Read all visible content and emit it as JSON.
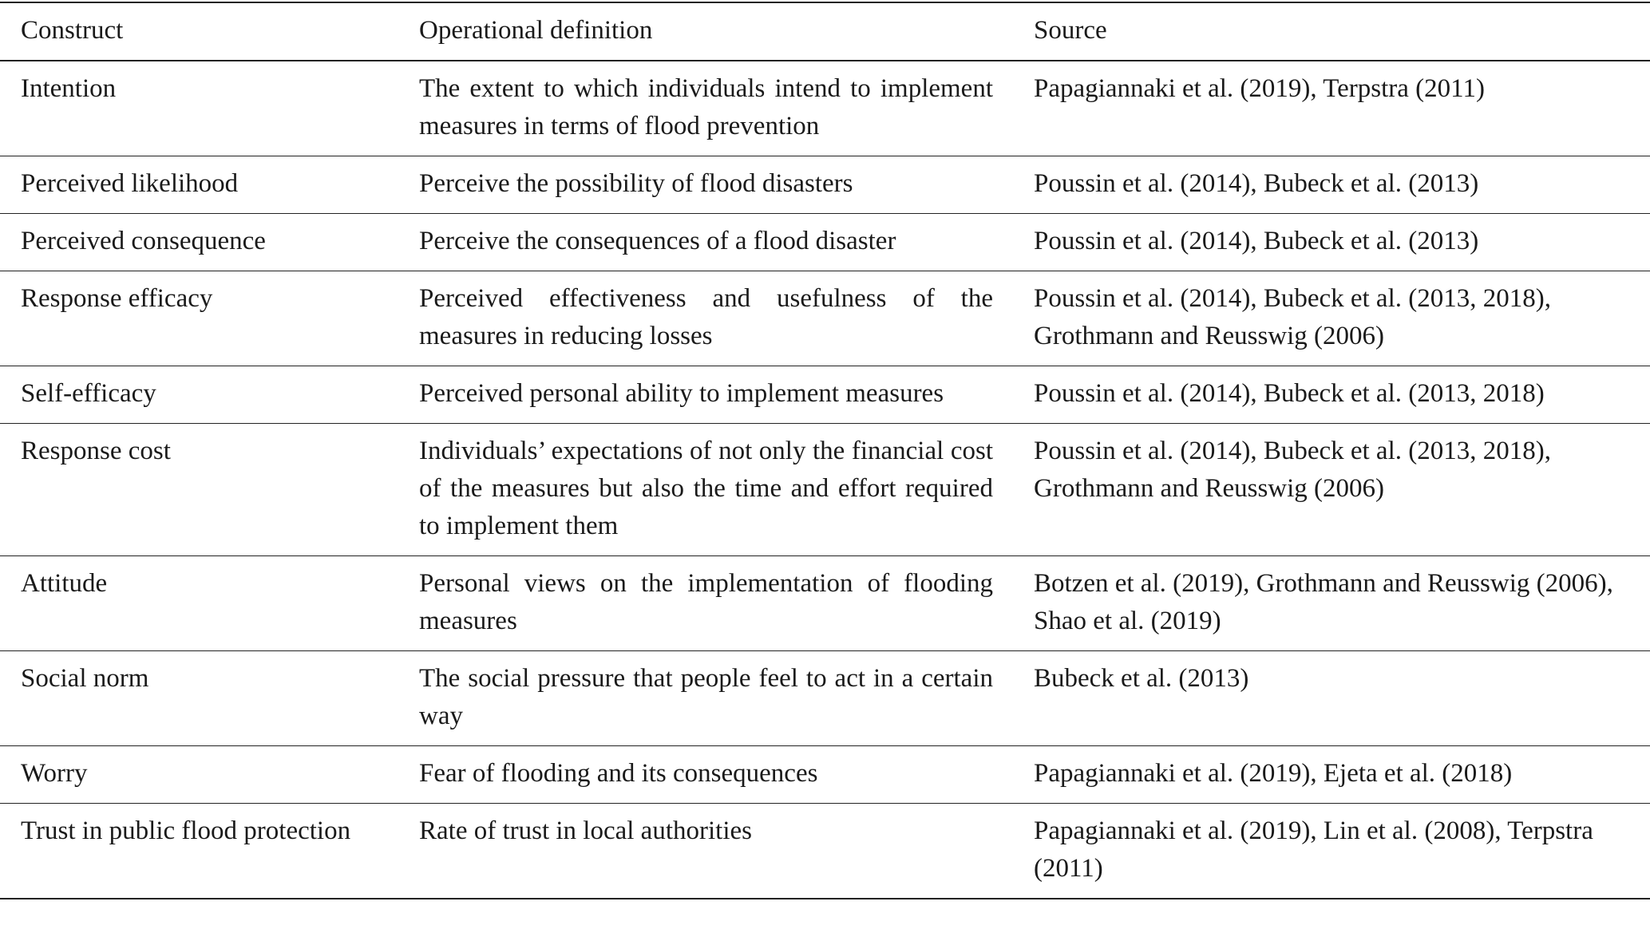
{
  "table": {
    "header": [
      "Construct",
      "Operational definition",
      "Source"
    ],
    "rows": [
      [
        "Intention",
        "The extent to which individuals intend to implement measures in terms of flood prevention",
        "Papagiannaki et al. (2019), Terpstra (2011)"
      ],
      [
        "Perceived likelihood",
        "Perceive the possibility of flood disasters",
        "Poussin et al. (2014), Bubeck et al. (2013)"
      ],
      [
        "Perceived consequence",
        "Perceive the consequences of a flood disaster",
        "Poussin et al. (2014), Bubeck et al. (2013)"
      ],
      [
        "Response efficacy",
        "Perceived effectiveness and usefulness of the measures in reducing losses",
        "Poussin et al. (2014), Bubeck et al. (2013, 2018), Grothmann and Reusswig (2006)"
      ],
      [
        "Self-efficacy",
        "Perceived personal ability to implement measures",
        "Poussin et al. (2014), Bubeck et al. (2013, 2018)"
      ],
      [
        "Response cost",
        "Individuals’ expectations of not only the financial cost of the measures but also the time and effort required to implement them",
        "Poussin et al. (2014), Bubeck et al. (2013, 2018), Grothmann and Reusswig (2006)"
      ],
      [
        "Attitude",
        "Personal views on the implementation of flooding measures",
        "Botzen et al. (2019), Grothmann and Reusswig (2006), Shao et al. (2019)"
      ],
      [
        "Social norm",
        "The social pressure that people feel to act in a certain way",
        "Bubeck et al. (2013)"
      ],
      [
        "Worry",
        "Fear of flooding and its consequences",
        "Papagiannaki et al. (2019), Ejeta et al. (2018)"
      ],
      [
        "Trust in public flood protection",
        "Rate of trust in local authorities",
        "Papagiannaki et al. (2019), Lin et al. (2008), Terpstra (2011)"
      ]
    ]
  }
}
